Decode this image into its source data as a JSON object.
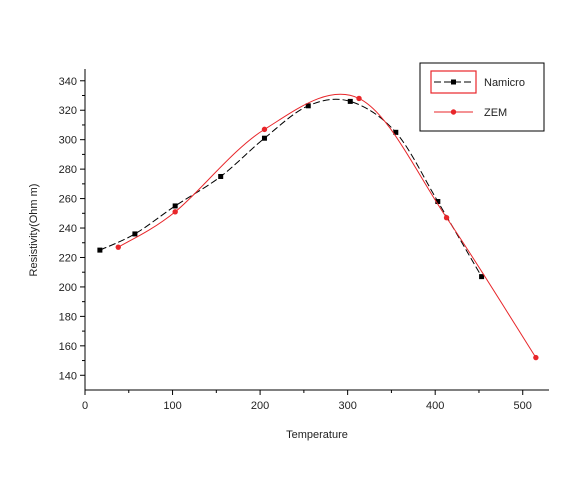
{
  "chart_data": {
    "type": "line",
    "title": "",
    "xlabel": "Temperature",
    "ylabel": "Resistivity(Ohm m)",
    "xlim": [
      0,
      530
    ],
    "ylim": [
      130,
      348
    ],
    "xticks": [
      0,
      100,
      200,
      300,
      400,
      500
    ],
    "yticks": [
      140,
      160,
      180,
      200,
      220,
      240,
      260,
      280,
      300,
      320,
      340
    ],
    "legend_position": "top-right",
    "grid": false,
    "series": [
      {
        "name": "Namicro",
        "color": "#000000",
        "line_style": "dashed",
        "marker": "square",
        "x": [
          17,
          57,
          103,
          155,
          205,
          255,
          303,
          355,
          403,
          453
        ],
        "y": [
          225,
          236,
          255,
          275,
          301,
          323,
          326,
          305,
          258,
          207
        ]
      },
      {
        "name": "ZEM",
        "color": "#e8262a",
        "line_style": "solid",
        "marker": "circle",
        "x": [
          38,
          103,
          205,
          313,
          413,
          515
        ],
        "y": [
          227,
          251,
          307,
          328,
          247,
          152
        ]
      }
    ]
  }
}
